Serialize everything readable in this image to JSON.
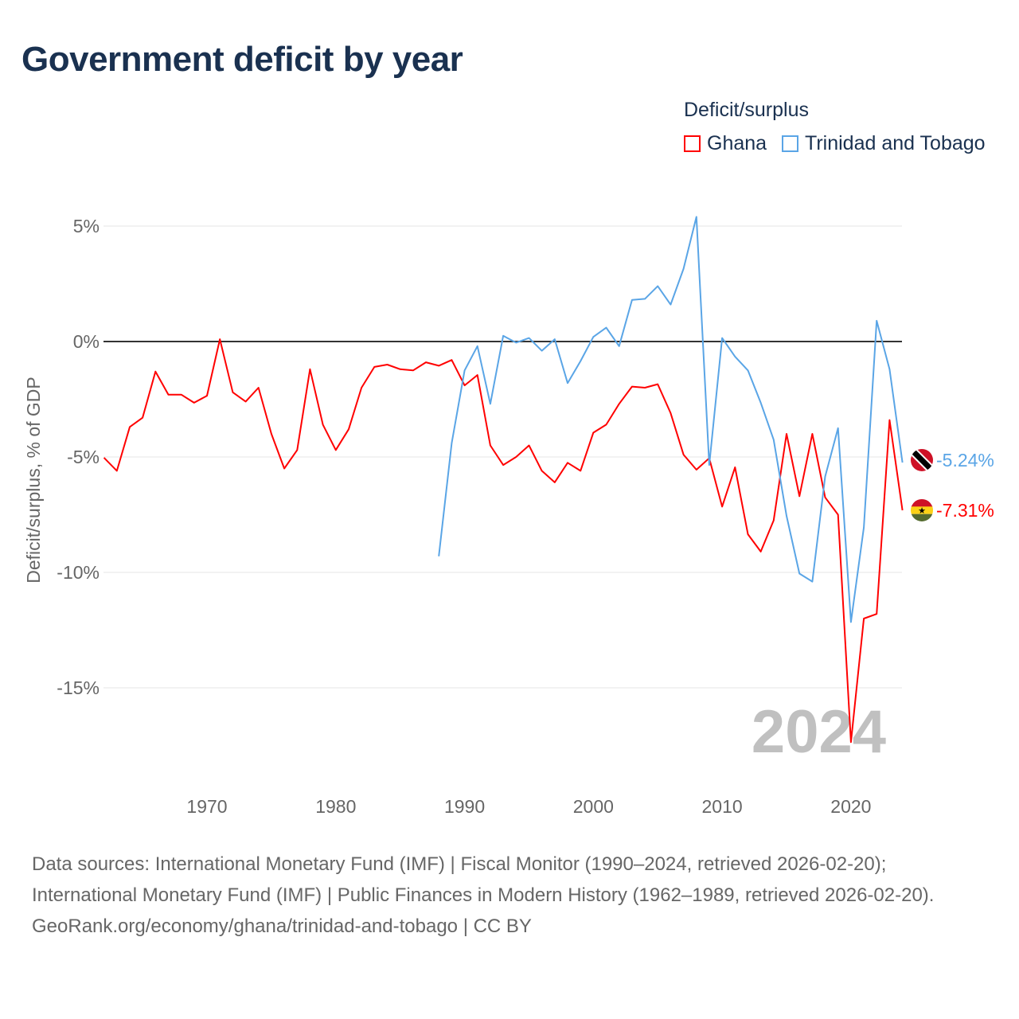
{
  "title": "Government deficit by year",
  "legend": {
    "title": "Deficit/surplus",
    "items": [
      {
        "label": "Ghana",
        "color": "#ff0000"
      },
      {
        "label": "Trinidad and Tobago",
        "color": "#5aa5e6"
      }
    ]
  },
  "footer": {
    "sources": "Data sources: International Monetary Fund (IMF) | Fiscal Monitor (1990–2024, retrieved 2026-02-20); International Monetary Fund (IMF) | Public Finances in Modern History (1962–1989, retrieved 2026-02-20).",
    "credit": "GeoRank.org/economy/ghana/trinidad-and-tobago | CC BY"
  },
  "chart_data": {
    "type": "line",
    "title": "Government deficit by year",
    "xlabel": "",
    "ylabel": "Deficit/surplus, % of GDP",
    "xlim": [
      1962,
      2024
    ],
    "ylim": [
      -17.5,
      5.5
    ],
    "x_ticks": [
      1970,
      1980,
      1990,
      2000,
      2010,
      2020
    ],
    "y_ticks": [
      5,
      0,
      -5,
      -10,
      -15
    ],
    "y_tick_labels": [
      "5%",
      "0%",
      "-5%",
      "-10%",
      "-15%"
    ],
    "watermark_year": "2024",
    "series": [
      {
        "name": "Ghana",
        "color": "#ff0000",
        "end_label": "-7.31%",
        "start_year": 1962,
        "values": [
          -5.03,
          -5.6,
          -3.7,
          -3.3,
          -1.3,
          -2.3,
          -2.3,
          -2.65,
          -2.35,
          0.1,
          -2.2,
          -2.6,
          -2.0,
          -4.0,
          -5.5,
          -4.7,
          -1.2,
          -3.6,
          -4.7,
          -3.8,
          -2.0,
          -1.1,
          -1.0,
          -1.2,
          -1.25,
          -0.9,
          -1.05,
          -0.8,
          -1.9,
          -1.45,
          -4.5,
          -5.35,
          -5.0,
          -4.5,
          -5.6,
          -6.1,
          -5.25,
          -5.6,
          -3.95,
          -3.6,
          -2.7,
          -1.95,
          -2.0,
          -1.85,
          -3.1,
          -4.9,
          -5.55,
          -5.05,
          -7.15,
          -5.45,
          -8.35,
          -9.1,
          -7.75,
          -4.0,
          -6.7,
          -4.0,
          -6.75,
          -7.5,
          -17.35,
          -12.0,
          -11.8,
          -3.4,
          -7.31
        ]
      },
      {
        "name": "Trinidad and Tobago",
        "color": "#5aa5e6",
        "end_label": "-5.24%",
        "start_year": 1988,
        "values": [
          -9.3,
          -4.4,
          -1.25,
          -0.2,
          -2.7,
          0.25,
          -0.05,
          0.15,
          -0.4,
          0.1,
          -1.8,
          -0.85,
          0.2,
          0.6,
          -0.2,
          1.8,
          1.85,
          2.4,
          1.6,
          3.15,
          5.4,
          -5.35,
          0.15,
          -0.65,
          -1.25,
          -2.65,
          -4.25,
          -7.55,
          -10.05,
          -10.4,
          -5.85,
          -3.75,
          -12.15,
          -8.05,
          0.9,
          -1.2,
          -5.24
        ]
      }
    ]
  }
}
